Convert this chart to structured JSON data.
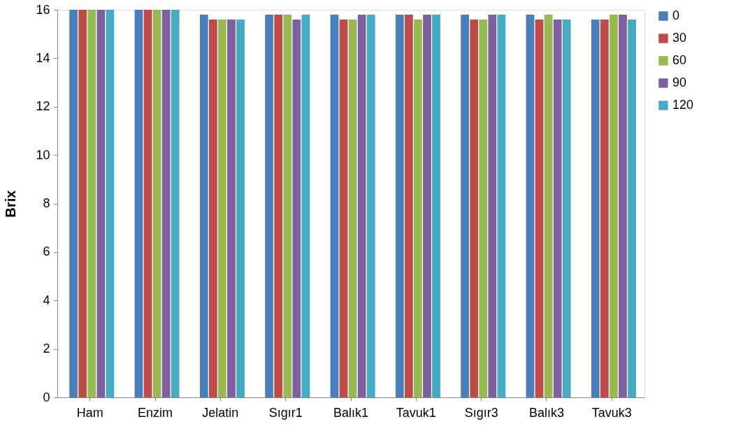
{
  "chart_data": {
    "type": "bar",
    "ylabel": "Brix",
    "categories": [
      "Ham",
      "Enzim",
      "Jelatin",
      "Sıgır1",
      "Balık1",
      "Tavuk1",
      "Sıgır3",
      "Balık3",
      "Tavuk3"
    ],
    "series": [
      {
        "name": "0",
        "color": "#4a7ebb",
        "values": [
          16,
          16,
          15.8,
          15.8,
          15.8,
          15.8,
          15.8,
          15.8,
          15.6
        ]
      },
      {
        "name": "30",
        "color": "#be4b48",
        "values": [
          16,
          16,
          15.6,
          15.8,
          15.6,
          15.8,
          15.6,
          15.6,
          15.6
        ]
      },
      {
        "name": "60",
        "color": "#98b954",
        "values": [
          16,
          16,
          15.6,
          15.8,
          15.6,
          15.6,
          15.6,
          15.8,
          15.8
        ]
      },
      {
        "name": "90",
        "color": "#7d60a0",
        "values": [
          16,
          16,
          15.6,
          15.6,
          15.8,
          15.8,
          15.8,
          15.6,
          15.8
        ]
      },
      {
        "name": "120",
        "color": "#46aac5",
        "values": [
          16,
          16,
          15.6,
          15.8,
          15.8,
          15.8,
          15.8,
          15.6,
          15.6
        ]
      }
    ],
    "ylim": [
      0,
      16
    ],
    "yticks": [
      0,
      2,
      4,
      6,
      8,
      10,
      12,
      14,
      16
    ],
    "grid": false,
    "legend": "right"
  }
}
